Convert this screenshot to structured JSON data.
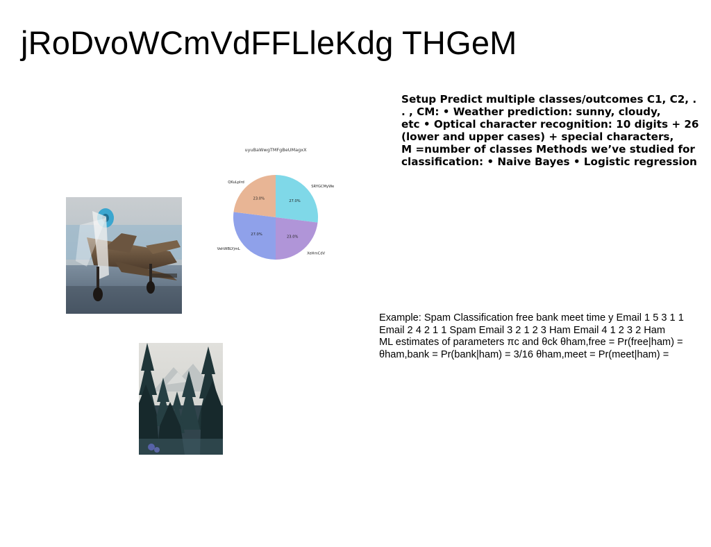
{
  "slide": {
    "title": "jRoDvoWCmVdFFLleKdg THGeM"
  },
  "text_block_bold": {
    "lines": [
      "Setup Predict multiple classes/outcomes C1, C2, .",
      ". , CM: • Weather prediction: sunny, cloudy,",
      "etc • Optical character recognition: 10 digits + 26",
      "(lower and upper cases) + special characters,",
      "M =number of classes Methods we’ve studied for",
      "classification: • Naive Bayes • Logistic regression"
    ]
  },
  "text_block_plain": {
    "lines": [
      "Example: Spam Classification free bank meet time y Email 1 5 3 1 1",
      "Email 2 4 2 1 1 Spam Email 3 2 1 2 3 Ham Email 4 1 2 3 2 Ham",
      "ML estimates of parameters πc and θck θham,free = Pr(free|ham) =",
      "θham,bank = Pr(bank|ham) = 3/16 θham,meet = Pr(meet|ham) ="
    ]
  },
  "images": {
    "airplane": "airplane-photo",
    "forest": "forest-photo"
  },
  "chart_data": {
    "type": "pie",
    "title": "uyuBaWwgTMFgBeUMagxX",
    "labels": [
      "SRYGCMyWe",
      "XeHmCdV",
      "VehWBLYjmL",
      "QKuLpIrd"
    ],
    "values": [
      27.0,
      23.0,
      27.0,
      23.0
    ],
    "percent_labels": [
      "27.0%",
      "23.0%",
      "27.0%",
      "23.0%"
    ],
    "colors": [
      "#7fd8e8",
      "#b095d8",
      "#8fa1ea",
      "#e8b595"
    ],
    "start_angle_deg": 90,
    "direction": "clockwise"
  }
}
